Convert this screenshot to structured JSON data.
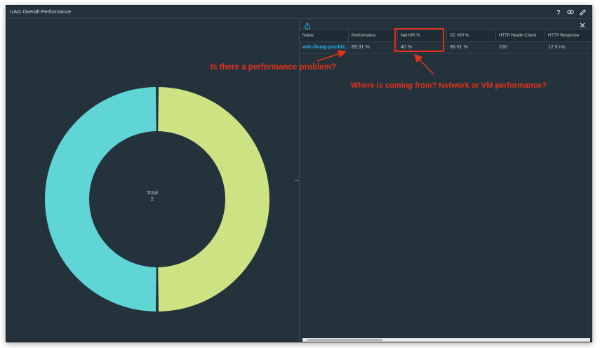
{
  "window": {
    "title": "UAG Overall Performance",
    "icons": [
      "help-icon",
      "eye-icon",
      "edit-icon"
    ]
  },
  "donut": {
    "center_label": "Total",
    "center_value": "2",
    "segments": [
      {
        "color": "#cde383",
        "fraction": 0.5
      },
      {
        "color": "#5fd5d6",
        "fraction": 0.5
      }
    ]
  },
  "details": {
    "columns": [
      "Name",
      "Performance",
      "Net KPI %",
      "DC KPI %",
      "HTTP Health Check",
      "HTTP Response"
    ],
    "rows": [
      [
        "wdc-ibuag-prod02....",
        "69.31 %",
        "40 %",
        "98.61 %",
        "200",
        "12.9 ms"
      ]
    ]
  },
  "annotations": {
    "question_1": "Is there a performance problem?",
    "question_2": "Where is coming from? Network or VM performance?",
    "color": "#e23218"
  }
}
